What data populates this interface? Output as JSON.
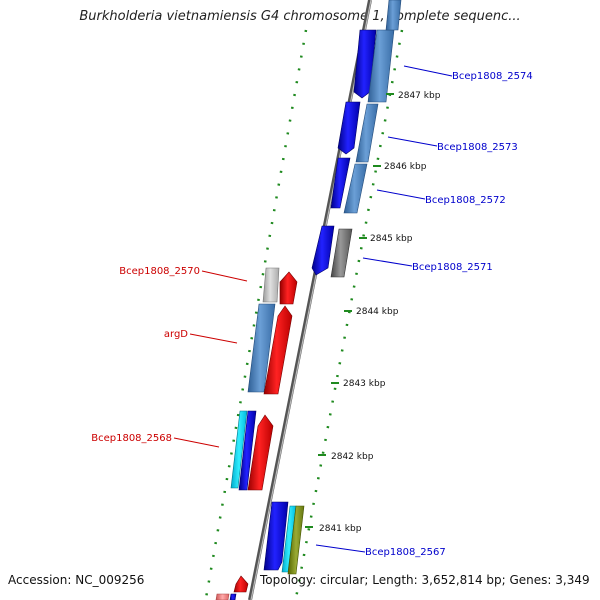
{
  "title": "Burkholderia vietnamiensis G4 chromosome 1, complete sequenc...",
  "footer": {
    "accession": "Accession: NC_009256",
    "summary": "Topology: circular; Length: 3,652,814 bp; Genes: 3,349"
  },
  "scale_ticks": [
    "2847 kbp",
    "2846 kbp",
    "2845 kbp",
    "2844 kbp",
    "2843 kbp",
    "2842 kbp",
    "2841 kbp"
  ],
  "gene_labels": {
    "right": [
      "Bcep1808_2574",
      "Bcep1808_2573",
      "Bcep1808_2572",
      "Bcep1808_2571",
      "Bcep1808_2567"
    ],
    "left": [
      "Bcep1808_2570",
      "argD",
      "Bcep1808_2568"
    ]
  },
  "colors": {
    "forward_cds": "#0000ee",
    "reverse_cds": "#ee0000",
    "steelblue_track": "#4f86c0",
    "gray_track": "#777777",
    "backbone": "#888888",
    "ring_dots": "#1f8a1f",
    "right_label": "#0000cc",
    "left_label": "#cc0000"
  }
}
